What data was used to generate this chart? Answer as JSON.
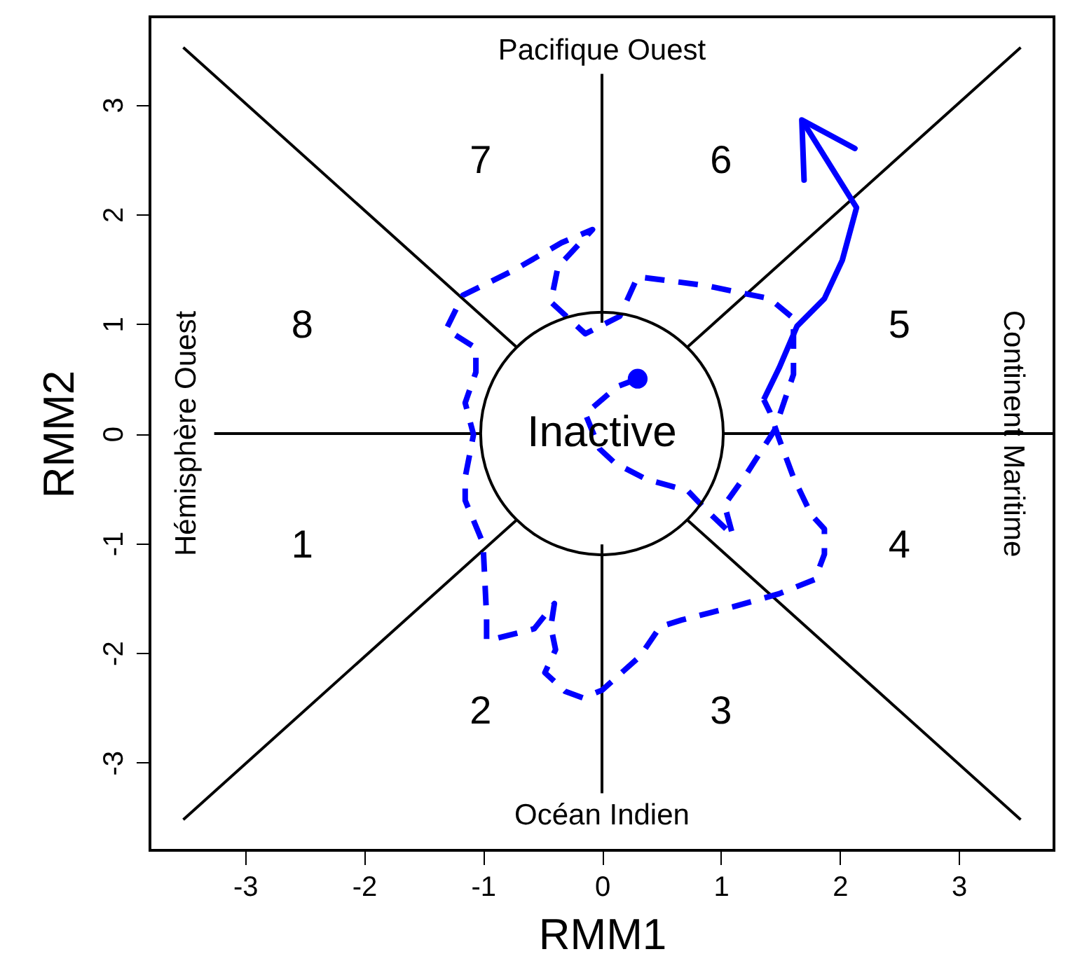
{
  "chart_data": {
    "type": "line",
    "xlabel": "RMM1",
    "ylabel": "RMM2",
    "xlim": [
      -3.8,
      3.8
    ],
    "ylim": [
      -3.8,
      3.8
    ],
    "xticks": [
      -3,
      -2,
      -1,
      0,
      1,
      2,
      3
    ],
    "yticks": [
      -3,
      -2,
      -1,
      0,
      1,
      2,
      3
    ],
    "grid": false,
    "series": [
      {
        "color": "#000000",
        "line_style": "solid",
        "x": [
          -3.52,
          -0.72
        ],
        "values": [
          3.52,
          0.79
        ]
      },
      {
        "color": "#000000",
        "line_style": "solid",
        "x": [
          3.52,
          0.72
        ],
        "values": [
          3.52,
          0.79
        ]
      },
      {
        "color": "#000000",
        "line_style": "solid",
        "x": [
          -3.52,
          -0.72
        ],
        "values": [
          -3.52,
          -0.79
        ]
      },
      {
        "color": "#000000",
        "line_style": "solid",
        "x": [
          3.52,
          0.72
        ],
        "values": [
          -3.52,
          -0.79
        ]
      },
      {
        "color": "#000000",
        "line_style": "solid",
        "x": [
          0,
          0
        ],
        "values": [
          1.01,
          3.28
        ]
      },
      {
        "color": "#000000",
        "line_style": "solid",
        "x": [
          0,
          0
        ],
        "values": [
          -1.01,
          -3.28
        ]
      },
      {
        "color": "#000000",
        "line_style": "solid",
        "x": [
          -3.26,
          -1.02
        ],
        "values": [
          0,
          0
        ]
      },
      {
        "color": "#000000",
        "line_style": "solid",
        "x": [
          1.02,
          3.8
        ],
        "values": [
          0,
          0
        ]
      },
      {
        "color": "#0000ff",
        "line_style": "dashed",
        "x": [
          0.3,
          0.13,
          -0.14,
          -0.02,
          0.11,
          0.38,
          0.72,
          0.87,
          1.1,
          1.03,
          1.22,
          1.45,
          1.61,
          1.61,
          1.41,
          0.87,
          0.3,
          0.15,
          -0.14,
          -0.43,
          -0.37,
          -0.08,
          -0.34,
          -0.74,
          -1.17,
          -1.31,
          -1.06,
          -1.06,
          -1.15,
          -1.08,
          -1.15,
          -1.15,
          -1.0,
          -0.97,
          -0.97,
          -0.57,
          -0.4,
          -0.43,
          -0.39,
          -0.48,
          -0.31,
          -0.16,
          0.0,
          0.32,
          0.49,
          0.67,
          1.1,
          1.49,
          1.79,
          1.87,
          1.87,
          1.76,
          1.61,
          1.49,
          1.41,
          1.36
        ],
        "values": [
          0.5,
          0.43,
          0.18,
          -0.14,
          -0.27,
          -0.42,
          -0.52,
          -0.69,
          -0.93,
          -0.65,
          -0.36,
          0.03,
          0.54,
          1.05,
          1.23,
          1.35,
          1.43,
          1.07,
          0.91,
          1.2,
          1.52,
          1.86,
          1.74,
          1.49,
          1.26,
          0.95,
          0.78,
          0.56,
          0.28,
          -0.01,
          -0.4,
          -0.61,
          -1.0,
          -1.67,
          -1.89,
          -1.78,
          -1.55,
          -1.76,
          -1.97,
          -2.18,
          -2.35,
          -2.41,
          -2.34,
          -2.03,
          -1.76,
          -1.7,
          -1.58,
          -1.46,
          -1.33,
          -1.1,
          -0.87,
          -0.74,
          -0.4,
          -0.05,
          0.2,
          0.31
        ]
      },
      {
        "type": "scatter",
        "color": "#0000ff",
        "marker": "circle",
        "x": [
          0.3
        ],
        "values": [
          0.5
        ]
      },
      {
        "color": "#0000ff",
        "line_style": "solid",
        "x": [
          1.36,
          1.49,
          1.64,
          1.87,
          2.02,
          2.14,
          1.68
        ],
        "values": [
          0.31,
          0.6,
          0.98,
          1.23,
          1.58,
          2.06,
          2.86
        ]
      }
    ],
    "annotations": [
      "Pacifique Ouest",
      "Océan Indien",
      "Hémisphère Ouest",
      "Continent Maritime",
      "Inactive",
      "1",
      "2",
      "3",
      "4",
      "5",
      "6",
      "7",
      "8"
    ]
  }
}
